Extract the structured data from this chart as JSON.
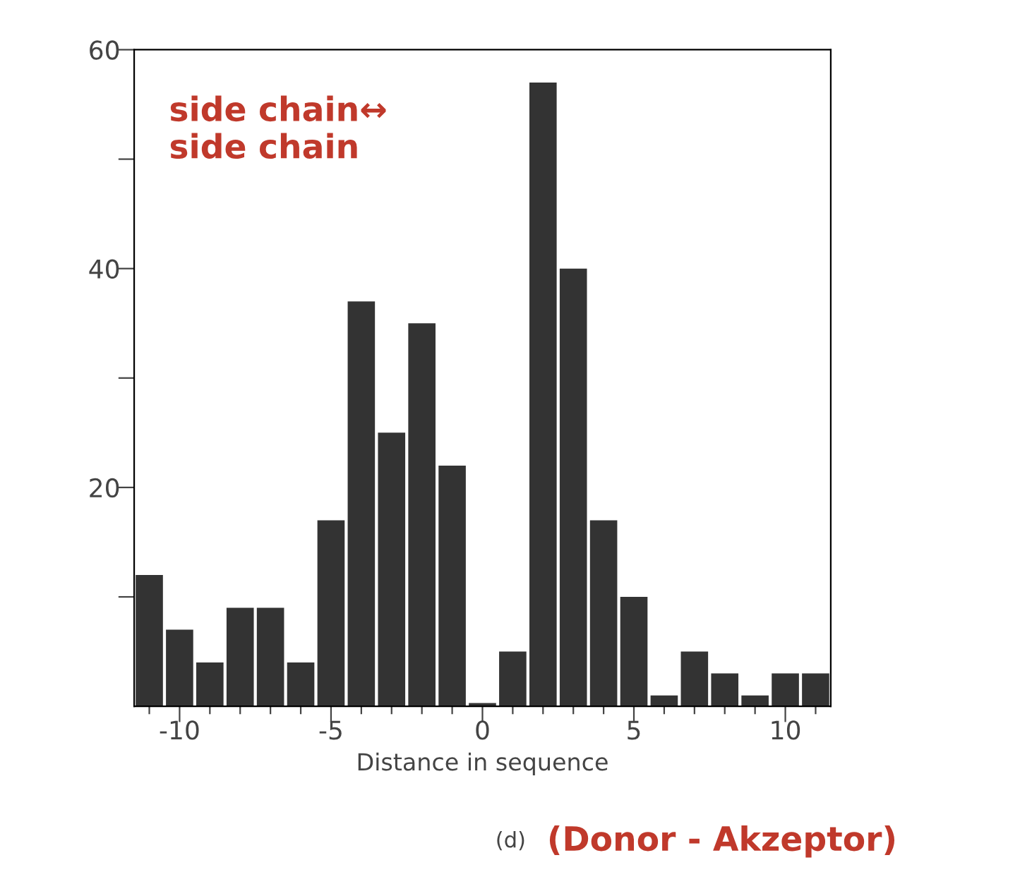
{
  "chart_data": {
    "type": "histogram",
    "xlabel": "Distance in sequence",
    "bins": [
      -11.5,
      -10.5,
      -9.5,
      -8.5,
      -7.5,
      -6.5,
      -5.5,
      -4.5,
      -3.5,
      -2.5,
      -1.5,
      -0.5,
      0.5,
      1.5,
      2.5,
      3.5,
      4.5,
      5.5,
      6.5,
      7.5,
      8.5,
      9.5,
      10.5,
      11.5
    ],
    "values": [
      12,
      7,
      4,
      9,
      9,
      4,
      17,
      37,
      25,
      35,
      22,
      0.3,
      5,
      57,
      40,
      17,
      10,
      1,
      5,
      3,
      1,
      3,
      3
    ],
    "color": "#333333",
    "xlim": [
      -11.5,
      11.5
    ],
    "xticks": [
      {
        "value": -11,
        "label": null
      },
      -10,
      {
        "value": -9,
        "label": null
      },
      {
        "value": -8,
        "label": null
      },
      {
        "value": -7,
        "label": null
      },
      {
        "value": -6,
        "label": null
      },
      -5,
      {
        "value": -4,
        "label": null
      },
      {
        "value": -3,
        "label": null
      },
      {
        "value": -2,
        "label": null
      },
      {
        "value": -1,
        "label": null
      },
      0,
      {
        "value": 1,
        "label": null
      },
      {
        "value": 2,
        "label": null
      },
      {
        "value": 3,
        "label": null
      },
      {
        "value": 4,
        "label": null
      },
      5,
      {
        "value": 6,
        "label": null
      },
      {
        "value": 7,
        "label": null
      },
      {
        "value": 8,
        "label": null
      },
      {
        "value": 9,
        "label": null
      },
      10,
      {
        "value": 11,
        "label": null
      }
    ],
    "ylim": [
      0,
      60
    ],
    "yticks": [
      {
        "value": 10,
        "label": null
      },
      20,
      {
        "value": 30,
        "label": null
      },
      40,
      {
        "value": 50,
        "label": null
      },
      60
    ],
    "grid": false,
    "annotations": [
      "side chain↔\nside chain",
      "(d)",
      "(Donor - Akzeptor)"
    ]
  }
}
